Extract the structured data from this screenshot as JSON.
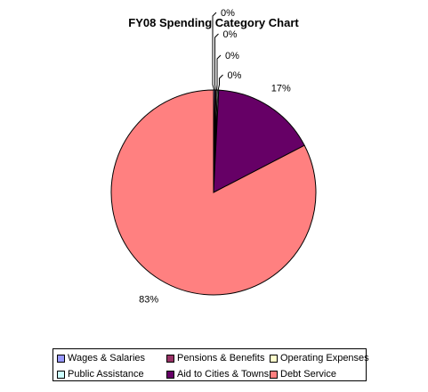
{
  "chart_data": {
    "type": "pie",
    "title": "FY08 Spending Category Chart",
    "slices": [
      {
        "name": "Wages & Salaries",
        "value": 0.2,
        "label": "0%",
        "color": "#9999ff"
      },
      {
        "name": "Pensions & Benefits",
        "value": 0.2,
        "label": "0%",
        "color": "#993366"
      },
      {
        "name": "Operating Expenses",
        "value": 0.2,
        "label": "0%",
        "color": "#ffffcc"
      },
      {
        "name": "Public Assistance",
        "value": 0.2,
        "label": "0%",
        "color": "#ccffff"
      },
      {
        "name": "Aid to Cities & Towns",
        "value": 16.6,
        "label": "17%",
        "color": "#660066"
      },
      {
        "name": "Debt Service",
        "value": 82.6,
        "label": "83%",
        "color": "#ff8080"
      }
    ],
    "legend_position": "bottom"
  }
}
